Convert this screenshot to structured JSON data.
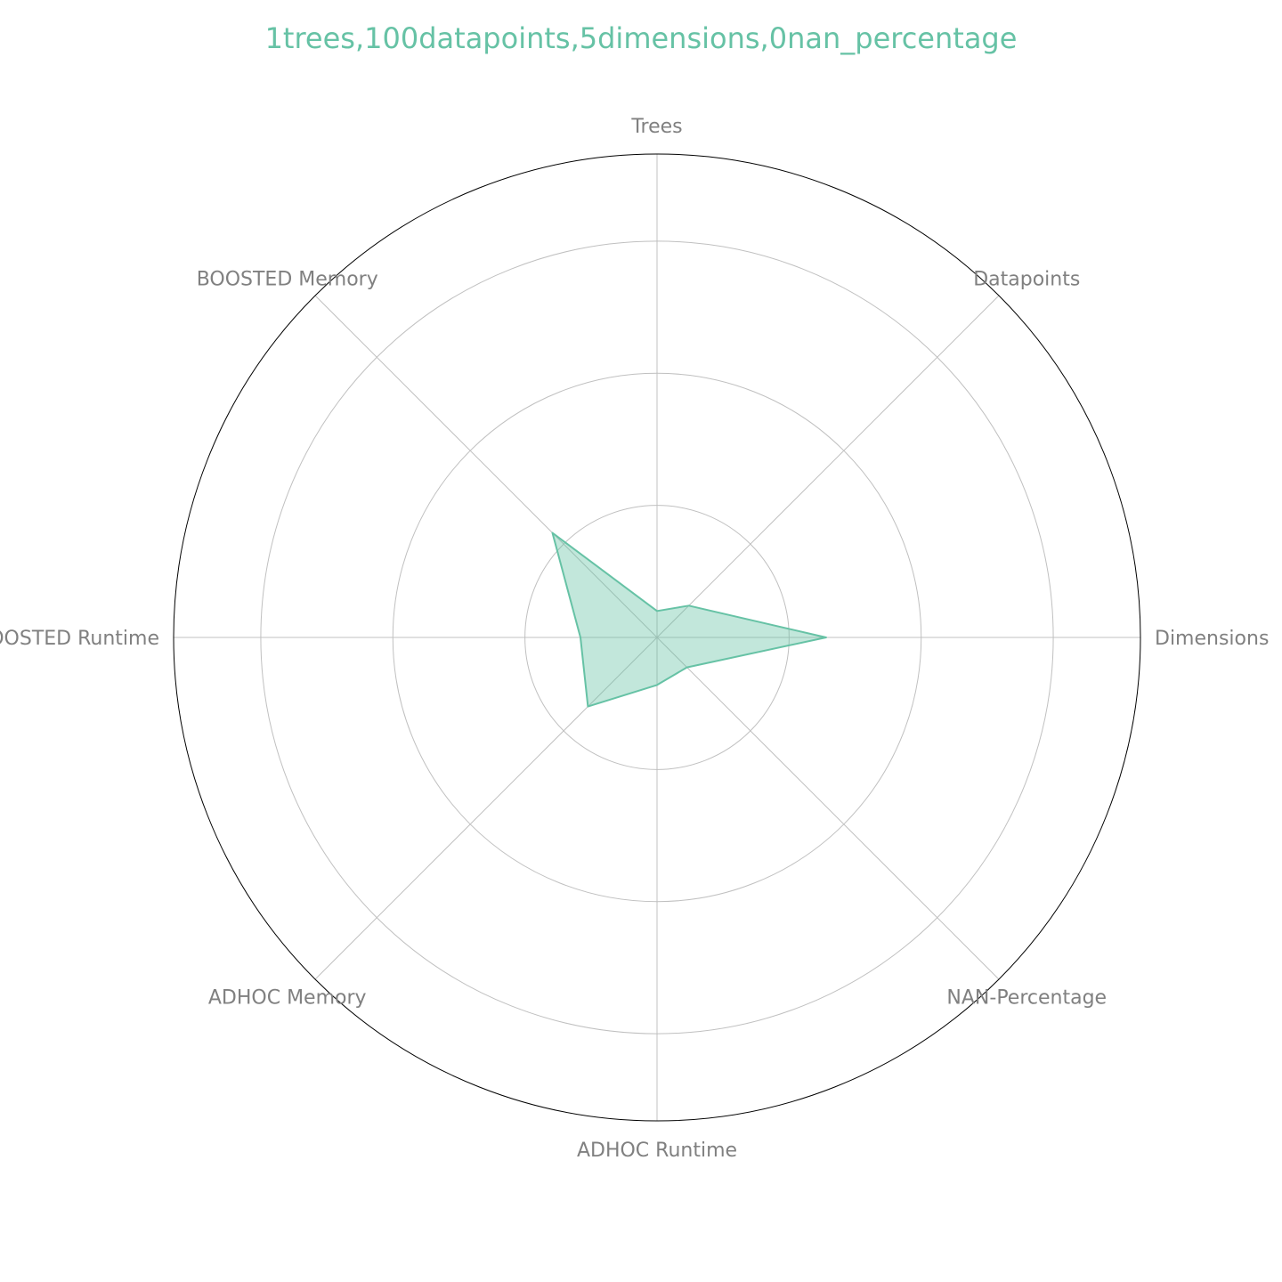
{
  "chart_data": {
    "type": "radar",
    "title": "1trees,100datapoints,5dimensions,0nan_percentage",
    "categories": [
      "Trees",
      "Datapoints",
      "Dimensions",
      "NAN-Percentage",
      "ADHOC Runtime",
      "ADHOC Memory",
      "BOOSTED Runtime",
      "BOOSTED Memory"
    ],
    "series": [
      {
        "values": [
          0.1,
          0.17,
          0.64,
          0.16,
          0.18,
          0.37,
          0.29,
          0.56
        ]
      }
    ],
    "rlim": [
      0,
      1.83
    ],
    "rticks": [
      0.5,
      1.0,
      1.5
    ],
    "grid": true,
    "legend": "none"
  },
  "colors": {
    "series": "#66c2a5",
    "title": "#66c2a5",
    "grid": "#c0c0c0",
    "frame": "#000000",
    "labels": "#808080"
  }
}
